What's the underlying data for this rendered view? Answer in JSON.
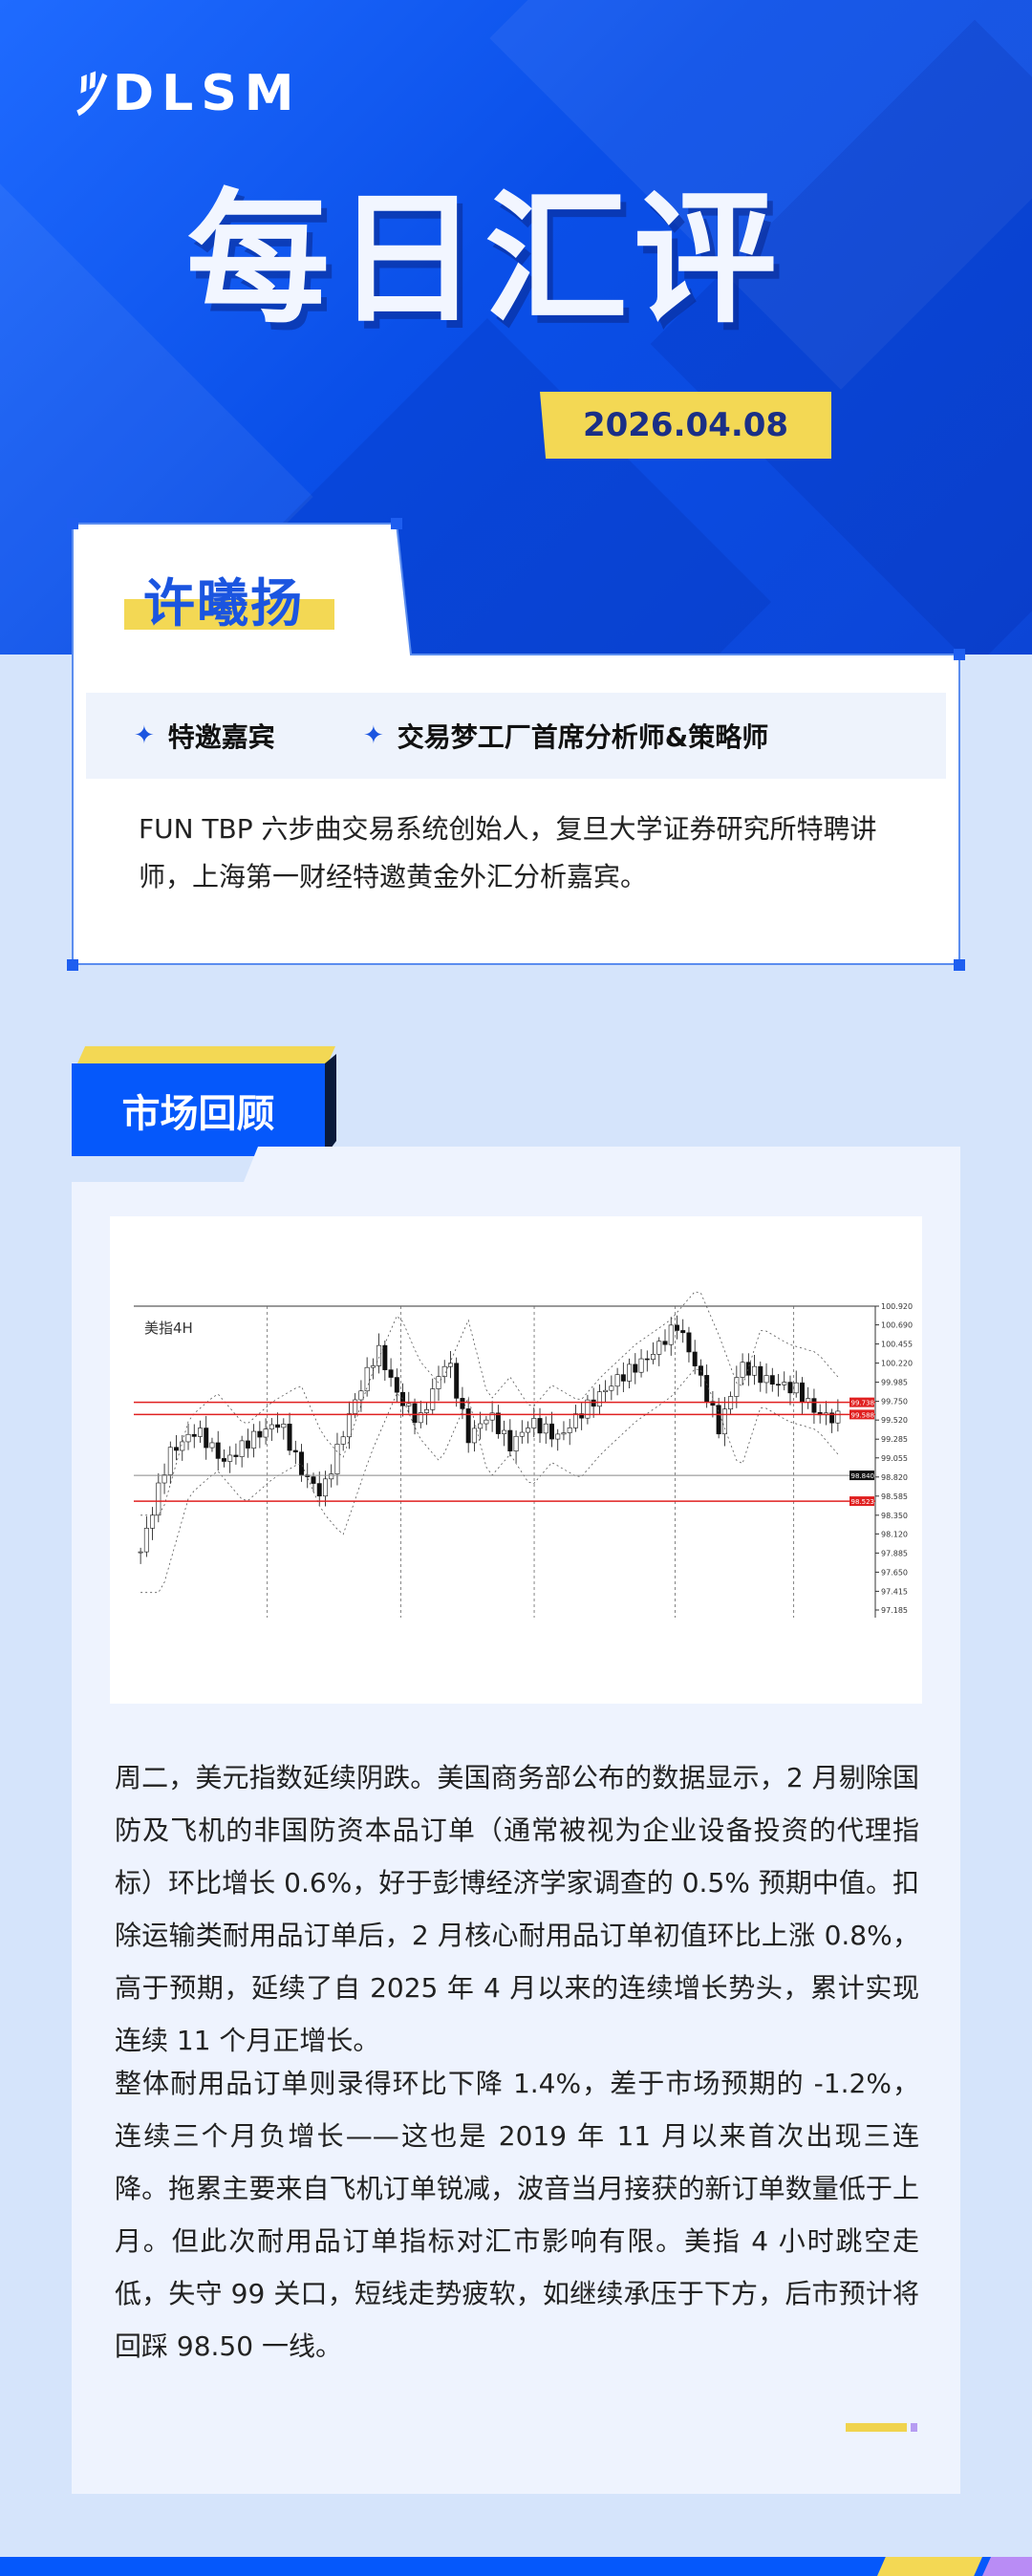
{
  "header": {
    "logo_text": "DLSM",
    "title": "每日汇评",
    "date": "2026.04.08"
  },
  "profile": {
    "name": "许曦扬",
    "tags": [
      "特邀嘉宾",
      "交易梦工厂首席分析师&策略师"
    ],
    "description": "FUN TBP 六步曲交易系统创始人，复旦大学证券研究所特聘讲师，上海第一财经特邀黄金外汇分析嘉宾。"
  },
  "section": {
    "title": "市场回顾"
  },
  "chart_image": {
    "label": "美指4H",
    "price_axis": [
      "100.920",
      "100.690",
      "100.455",
      "100.220",
      "99.985",
      "99.750",
      "99.520",
      "99.285",
      "99.055",
      "98.820",
      "98.585",
      "98.350",
      "98.120",
      "97.885",
      "97.650",
      "97.415",
      "97.185"
    ],
    "levels": [
      {
        "value": "99.738",
        "color": "#e02020"
      },
      {
        "value": "99.588",
        "color": "#e02020"
      },
      {
        "value": "98.523",
        "color": "#e02020"
      }
    ],
    "current_price": "98.840"
  },
  "article": {
    "paragraphs": [
      "周二，美元指数延续阴跌。美国商务部公布的数据显示，2 月剔除国防及飞机的非国防资本品订单（通常被视为企业设备投资的代理指标）环比增长 0.6%，好于彭博经济学家调查的 0.5% 预期中值。扣除运输类耐用品订单后，2 月核心耐用品订单初值环比上涨 0.8%，高于预期，延续了自 2025 年 4 月以来的连续增长势头，累计实现连续 11 个月正增长。",
      "整体耐用品订单则录得环比下降 1.4%，差于市场预期的 -1.2%，连续三个月负增长——这也是 2019 年 11 月以来首次出现三连降。拖累主要来自飞机订单锐减，波音当月接获的新订单数量低于上月。但此次耐用品订单指标对汇市影响有限。美指 4 小时跳空走低，失守 99 关口，短线走势疲软，如继续承压于下方，后市预计将回踩 98.50 一线。"
    ]
  },
  "colors": {
    "brand_blue": "#0558fb",
    "accent_yellow": "#f3d854",
    "accent_purple": "#b98cf5",
    "page_bg": "#d5e4fb"
  }
}
